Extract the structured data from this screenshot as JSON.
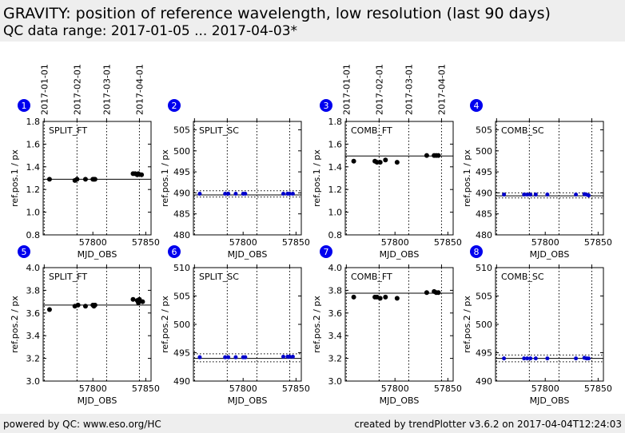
{
  "header": {
    "title": "GRAVITY: position of reference wavelength, low resolution (last 90 days)",
    "subtitle": "QC data range: 2017-01-05 ... 2017-04-03*"
  },
  "footer": {
    "left": "powered by QC: www.eso.org/HC",
    "right": "created by trendPlotter v3.6.2 on 2017-04-04T12:24:03"
  },
  "colors": {
    "black_points": "#000000",
    "blue_points": "#0000cc",
    "badge_fill": "#0000ee",
    "header_bg": "#eeeeee"
  },
  "chart_data": [
    {
      "type": "scatter",
      "badge": "1",
      "label": "SPLIT_FT",
      "point_color": "black",
      "xlabel": "MJD_OBS",
      "ylabel": "ref.pos.1 / px",
      "xlim": [
        57753,
        57855
      ],
      "ylim": [
        0.8,
        1.8
      ],
      "yticks": [
        0.8,
        1.0,
        1.2,
        1.4,
        1.6,
        1.8
      ],
      "ytick_labels": [
        "0.8",
        "1.0",
        "1.2",
        "1.4",
        "1.6",
        "1.8"
      ],
      "xticks": [
        57800,
        57850
      ],
      "xtick_labels": [
        "57800",
        "57850"
      ],
      "date_ticks": [
        {
          "mjd": 57754,
          "label": "2017-01-01"
        },
        {
          "mjd": 57785,
          "label": "2017-02-01"
        },
        {
          "mjd": 57813,
          "label": "2017-03-01"
        },
        {
          "mjd": 57844,
          "label": "2017-04-01"
        }
      ],
      "x": [
        57759,
        57783,
        57785,
        57793,
        57800,
        57801,
        57802,
        57838,
        57840,
        57842,
        57843,
        57846
      ],
      "y": [
        1.29,
        1.28,
        1.29,
        1.29,
        1.29,
        1.29,
        1.29,
        1.34,
        1.34,
        1.33,
        1.34,
        1.33
      ],
      "ref_line": 1.29
    },
    {
      "type": "scatter",
      "badge": "2",
      "label": "SPLIT_SC",
      "point_color": "blue",
      "xlabel": "MJD_OBS",
      "ylabel": "ref.pos.1 / px",
      "xlim": [
        57753,
        57855
      ],
      "ylim": [
        480,
        507
      ],
      "yticks": [
        480,
        485,
        490,
        495,
        500,
        505
      ],
      "ytick_labels": [
        "480",
        "485",
        "490",
        "495",
        "500",
        "505"
      ],
      "xticks": [
        57800,
        57850
      ],
      "xtick_labels": [
        "57800",
        "57850"
      ],
      "date_ticks": [
        {
          "mjd": 57754,
          "label": ""
        },
        {
          "mjd": 57785,
          "label": ""
        },
        {
          "mjd": 57813,
          "label": ""
        },
        {
          "mjd": 57844,
          "label": ""
        }
      ],
      "x": [
        57759,
        57783,
        57786,
        57793,
        57800,
        57802,
        57838,
        57842,
        57844,
        57847
      ],
      "y": [
        489.8,
        489.8,
        489.8,
        489.8,
        489.8,
        489.8,
        489.8,
        489.8,
        489.8,
        489.8
      ],
      "ref_line": 489.5,
      "band": [
        489.0,
        490.5
      ]
    },
    {
      "type": "scatter",
      "badge": "3",
      "label": "COMB_FT",
      "point_color": "black",
      "xlabel": "MJD_OBS",
      "ylabel": "ref.pos.1 / px",
      "xlim": [
        57753,
        57855
      ],
      "ylim": [
        0.8,
        1.8
      ],
      "yticks": [
        0.8,
        1.0,
        1.2,
        1.4,
        1.6,
        1.8
      ],
      "ytick_labels": [
        "0.8",
        "1.0",
        "1.2",
        "1.4",
        "1.6",
        "1.8"
      ],
      "xticks": [
        57800,
        57850
      ],
      "xtick_labels": [
        "57800",
        "57850"
      ],
      "date_ticks": [
        {
          "mjd": 57754,
          "label": "2017-01-01"
        },
        {
          "mjd": 57785,
          "label": "2017-02-01"
        },
        {
          "mjd": 57813,
          "label": "2017-03-01"
        },
        {
          "mjd": 57844,
          "label": "2017-04-01"
        }
      ],
      "x": [
        57761,
        57781,
        57783,
        57786,
        57791,
        57802,
        57830,
        57837,
        57839,
        57841
      ],
      "y": [
        1.45,
        1.45,
        1.44,
        1.44,
        1.46,
        1.44,
        1.5,
        1.5,
        1.5,
        1.5
      ],
      "ref_line": 1.495
    },
    {
      "type": "scatter",
      "badge": "4",
      "label": "COMB_SC",
      "point_color": "blue",
      "xlabel": "MJD_OBS",
      "ylabel": "ref.pos.1 / px",
      "xlim": [
        57753,
        57855
      ],
      "ylim": [
        480,
        507
      ],
      "yticks": [
        480,
        485,
        490,
        495,
        500,
        505
      ],
      "ytick_labels": [
        "480",
        "485",
        "490",
        "495",
        "500",
        "505"
      ],
      "xticks": [
        57800,
        57850
      ],
      "xtick_labels": [
        "57800",
        "57850"
      ],
      "date_ticks": [
        {
          "mjd": 57754,
          "label": ""
        },
        {
          "mjd": 57785,
          "label": ""
        },
        {
          "mjd": 57813,
          "label": ""
        },
        {
          "mjd": 57844,
          "label": ""
        }
      ],
      "x": [
        57761,
        57780,
        57783,
        57786,
        57791,
        57802,
        57829,
        57837,
        57839,
        57841
      ],
      "y": [
        489.6,
        489.6,
        489.6,
        489.6,
        489.6,
        489.6,
        489.6,
        489.7,
        489.6,
        489.4
      ],
      "ref_line": 489.3,
      "band": [
        488.8,
        490.0
      ]
    },
    {
      "type": "scatter",
      "badge": "5",
      "label": "SPLIT_FT",
      "point_color": "black",
      "xlabel": "MJD_OBS",
      "ylabel": "ref.pos.2 / px",
      "xlim": [
        57753,
        57855
      ],
      "ylim": [
        3.0,
        4.0
      ],
      "yticks": [
        3.0,
        3.2,
        3.4,
        3.6,
        3.8,
        4.0
      ],
      "ytick_labels": [
        "3.0",
        "3.2",
        "3.4",
        "3.6",
        "3.8",
        "4.0"
      ],
      "xticks": [
        57800,
        57850
      ],
      "xtick_labels": [
        "57800",
        "57850"
      ],
      "date_ticks": [
        {
          "mjd": 57754,
          "label": ""
        },
        {
          "mjd": 57785,
          "label": ""
        },
        {
          "mjd": 57813,
          "label": ""
        },
        {
          "mjd": 57844,
          "label": ""
        }
      ],
      "x": [
        57759,
        57783,
        57786,
        57793,
        57800,
        57801,
        57802,
        57838,
        57842,
        57843,
        57844,
        57847
      ],
      "y": [
        3.63,
        3.66,
        3.67,
        3.66,
        3.67,
        3.66,
        3.67,
        3.72,
        3.71,
        3.69,
        3.72,
        3.7
      ],
      "ref_line": 3.67
    },
    {
      "type": "scatter",
      "badge": "6",
      "label": "SPLIT_SC",
      "point_color": "blue",
      "xlabel": "MJD_OBS",
      "ylabel": "ref.pos.2 / px",
      "xlim": [
        57753,
        57855
      ],
      "ylim": [
        490,
        510
      ],
      "yticks": [
        490,
        495,
        500,
        505,
        510
      ],
      "ytick_labels": [
        "490",
        "495",
        "500",
        "505",
        "510"
      ],
      "xticks": [
        57800,
        57850
      ],
      "xtick_labels": [
        "57800",
        "57850"
      ],
      "date_ticks": [
        {
          "mjd": 57754,
          "label": ""
        },
        {
          "mjd": 57785,
          "label": ""
        },
        {
          "mjd": 57813,
          "label": ""
        },
        {
          "mjd": 57844,
          "label": ""
        }
      ],
      "x": [
        57759,
        57783,
        57786,
        57793,
        57800,
        57802,
        57838,
        57842,
        57844,
        57847
      ],
      "y": [
        494.2,
        494.2,
        494.2,
        494.2,
        494.2,
        494.2,
        494.3,
        494.3,
        494.3,
        494.3
      ],
      "ref_line": 494.0,
      "band": [
        493.4,
        494.8
      ]
    },
    {
      "type": "scatter",
      "badge": "7",
      "label": "COMB_FT",
      "point_color": "black",
      "xlabel": "MJD_OBS",
      "ylabel": "ref.pos.2 / px",
      "xlim": [
        57753,
        57855
      ],
      "ylim": [
        3.0,
        4.0
      ],
      "yticks": [
        3.0,
        3.2,
        3.4,
        3.6,
        3.8,
        4.0
      ],
      "ytick_labels": [
        "3.0",
        "3.2",
        "3.4",
        "3.6",
        "3.8",
        "4.0"
      ],
      "xticks": [
        57800,
        57850
      ],
      "xtick_labels": [
        "57800",
        "57850"
      ],
      "date_ticks": [
        {
          "mjd": 57754,
          "label": ""
        },
        {
          "mjd": 57785,
          "label": ""
        },
        {
          "mjd": 57813,
          "label": ""
        },
        {
          "mjd": 57844,
          "label": ""
        }
      ],
      "x": [
        57761,
        57781,
        57783,
        57786,
        57791,
        57802,
        57830,
        57837,
        57839,
        57841
      ],
      "y": [
        3.74,
        3.74,
        3.74,
        3.73,
        3.74,
        3.73,
        3.78,
        3.79,
        3.78,
        3.78
      ],
      "ref_line": 3.775
    },
    {
      "type": "scatter",
      "badge": "8",
      "label": "COMB_SC",
      "point_color": "blue",
      "xlabel": "MJD_OBS",
      "ylabel": "ref.pos.2 / px",
      "xlim": [
        57753,
        57855
      ],
      "ylim": [
        490,
        510
      ],
      "yticks": [
        490,
        495,
        500,
        505,
        510
      ],
      "ytick_labels": [
        "490",
        "495",
        "500",
        "505",
        "510"
      ],
      "xticks": [
        57800,
        57850
      ],
      "xtick_labels": [
        "57800",
        "57850"
      ],
      "date_ticks": [
        {
          "mjd": 57754,
          "label": ""
        },
        {
          "mjd": 57785,
          "label": ""
        },
        {
          "mjd": 57813,
          "label": ""
        },
        {
          "mjd": 57844,
          "label": ""
        }
      ],
      "x": [
        57761,
        57780,
        57783,
        57786,
        57791,
        57802,
        57829,
        57837,
        57839,
        57841
      ],
      "y": [
        494.0,
        494.0,
        494.0,
        494.0,
        494.0,
        494.0,
        494.0,
        494.1,
        494.0,
        494.0
      ],
      "ref_line": 494.0,
      "band": [
        493.4,
        494.6
      ]
    }
  ]
}
